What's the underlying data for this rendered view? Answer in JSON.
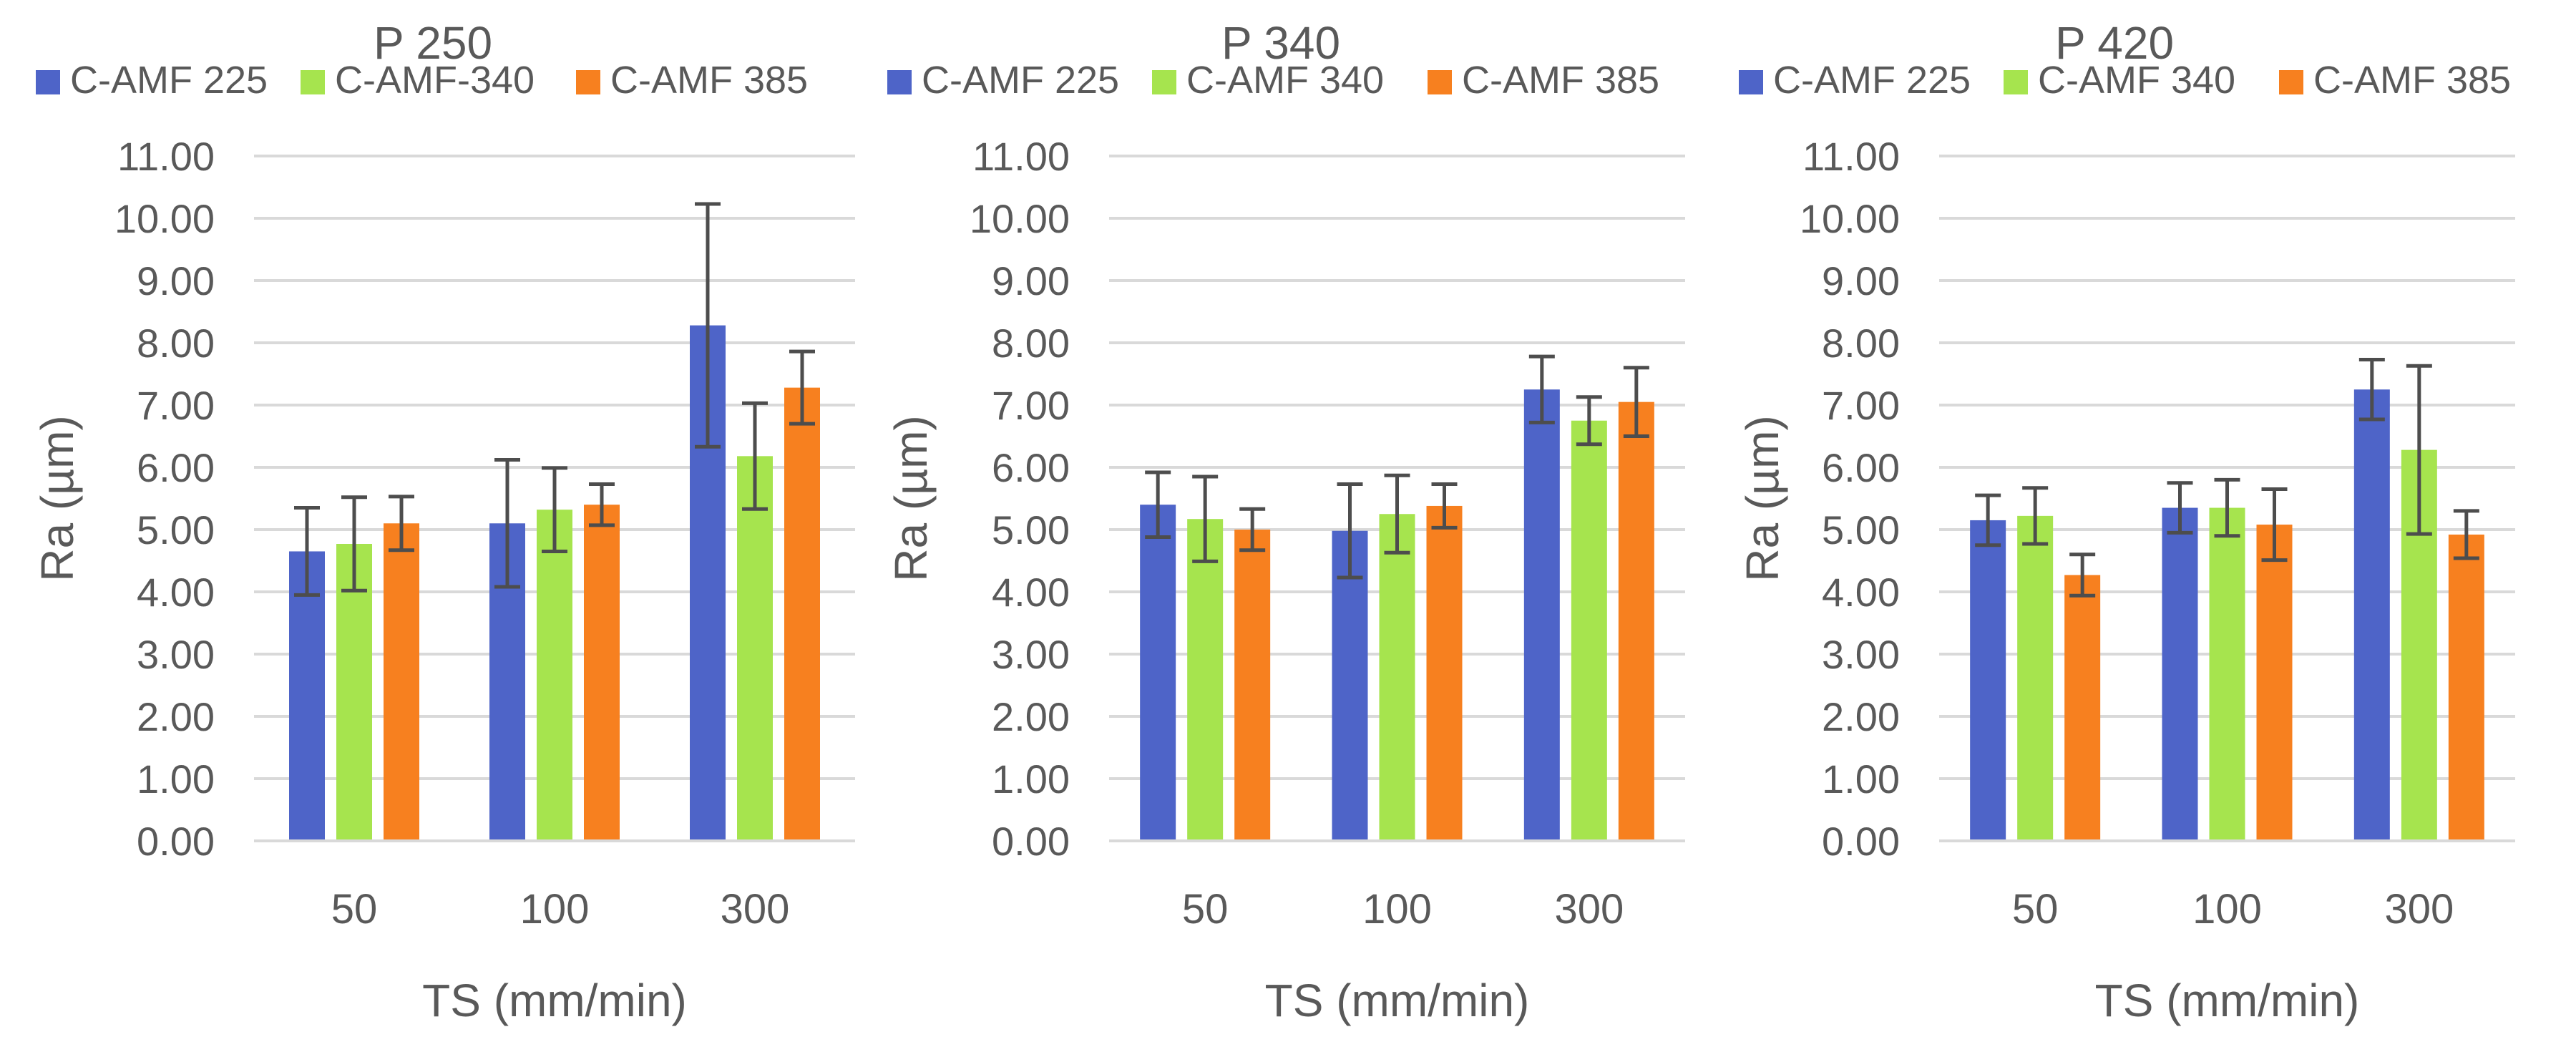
{
  "chart_data": [
    {
      "type": "bar",
      "title": "P 250",
      "xlabel": "TS (mm/min)",
      "ylabel": "Ra (µm)",
      "categories": [
        "50",
        "100",
        "300"
      ],
      "ylim": [
        0,
        11
      ],
      "yticks": [
        "0.00",
        "1.00",
        "2.00",
        "3.00",
        "4.00",
        "5.00",
        "6.00",
        "7.00",
        "8.00",
        "9.00",
        "10.00",
        "11.00"
      ],
      "grid": true,
      "legend_position": "top",
      "error_bars": true,
      "series": [
        {
          "name": "C-AMF 225",
          "color": "#4E64C8",
          "values": [
            4.65,
            5.1,
            8.28
          ],
          "errors": [
            0.7,
            1.02,
            1.95
          ]
        },
        {
          "name": "C-AMF-340",
          "color": "#A6E44E",
          "values": [
            4.77,
            5.32,
            6.18
          ],
          "errors": [
            0.75,
            0.67,
            0.85
          ]
        },
        {
          "name": "C-AMF 385",
          "color": "#F7801F",
          "values": [
            5.1,
            5.4,
            7.28
          ],
          "errors": [
            0.43,
            0.33,
            0.58
          ]
        }
      ]
    },
    {
      "type": "bar",
      "title": "P 340",
      "xlabel": "TS (mm/min)",
      "ylabel": "Ra (µm)",
      "categories": [
        "50",
        "100",
        "300"
      ],
      "ylim": [
        0,
        11
      ],
      "yticks": [
        "0.00",
        "1.00",
        "2.00",
        "3.00",
        "4.00",
        "5.00",
        "6.00",
        "7.00",
        "8.00",
        "9.00",
        "10.00",
        "11.00"
      ],
      "grid": true,
      "legend_position": "top",
      "error_bars": true,
      "series": [
        {
          "name": "C-AMF 225",
          "color": "#4E64C8",
          "values": [
            5.4,
            4.98,
            7.25
          ],
          "errors": [
            0.52,
            0.75,
            0.53
          ]
        },
        {
          "name": "C-AMF 340",
          "color": "#A6E44E",
          "values": [
            5.17,
            5.25,
            6.75
          ],
          "errors": [
            0.68,
            0.62,
            0.38
          ]
        },
        {
          "name": "C-AMF 385",
          "color": "#F7801F",
          "values": [
            5.0,
            5.38,
            7.05
          ],
          "errors": [
            0.33,
            0.35,
            0.55
          ]
        }
      ]
    },
    {
      "type": "bar",
      "title": "P 420",
      "xlabel": "TS (mm/min)",
      "ylabel": "Ra (µm)",
      "categories": [
        "50",
        "100",
        "300"
      ],
      "ylim": [
        0,
        11
      ],
      "yticks": [
        "0.00",
        "1.00",
        "2.00",
        "3.00",
        "4.00",
        "5.00",
        "6.00",
        "7.00",
        "8.00",
        "9.00",
        "10.00",
        "11.00"
      ],
      "grid": true,
      "legend_position": "top",
      "error_bars": true,
      "series": [
        {
          "name": "C-AMF 225",
          "color": "#4E64C8",
          "values": [
            5.15,
            5.35,
            7.25
          ],
          "errors": [
            0.4,
            0.4,
            0.48
          ]
        },
        {
          "name": "C-AMF 340",
          "color": "#A6E44E",
          "values": [
            5.22,
            5.35,
            6.28
          ],
          "errors": [
            0.45,
            0.45,
            1.35
          ]
        },
        {
          "name": "C-AMF 385",
          "color": "#F7801F",
          "values": [
            4.27,
            5.08,
            4.92
          ],
          "errors": [
            0.33,
            0.57,
            0.38
          ]
        }
      ]
    }
  ]
}
